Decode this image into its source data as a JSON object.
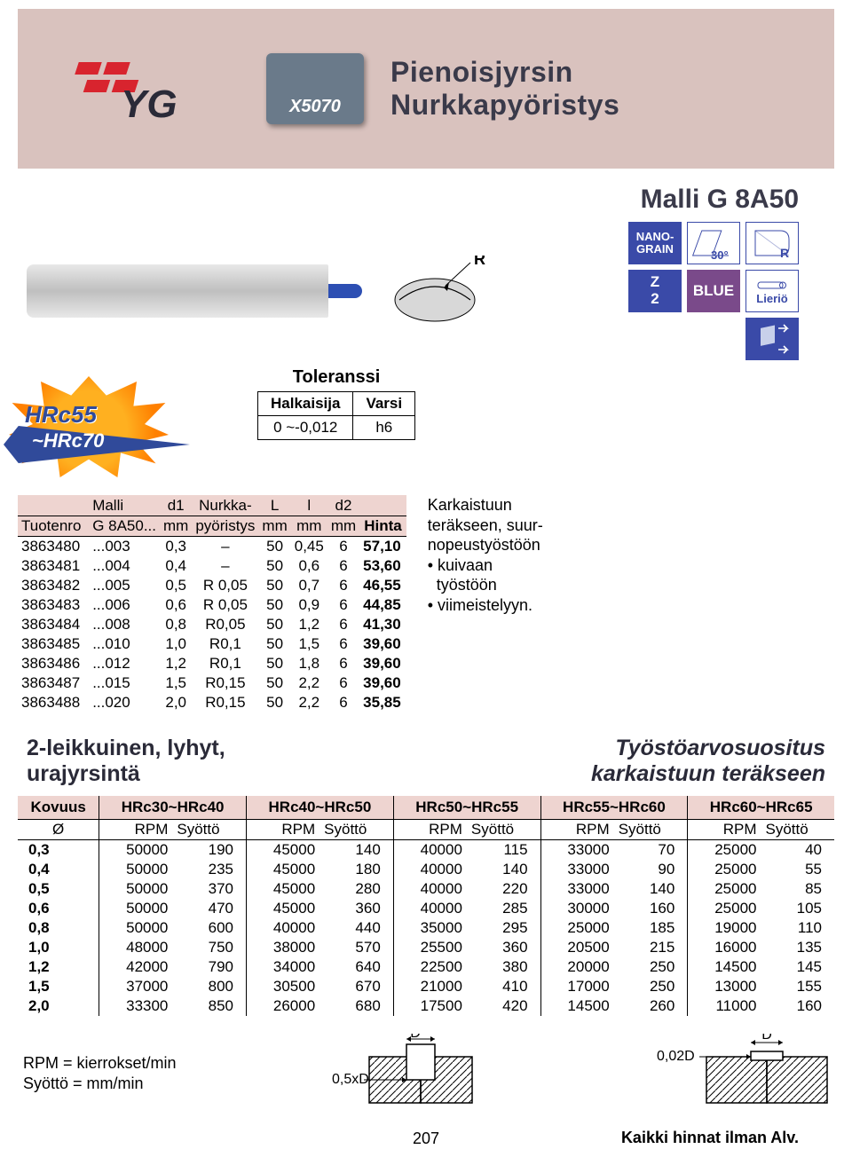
{
  "header": {
    "badge": "X5070",
    "title1": "Pienoisjyrsin",
    "title2": "Nurkkapyöristys"
  },
  "malli_title": "Malli G 8A50",
  "burst": {
    "top": "HRc55",
    "bottom": "~HRc70"
  },
  "tolerance": {
    "title": "Toleranssi",
    "col1": "Halkaisija",
    "col2": "Varsi",
    "v1": "0 ~-0,012",
    "v2": "h6"
  },
  "icons": {
    "nano": "NANO-\nGRAIN",
    "deg": "30°",
    "r": "R",
    "z2": "Z\n2",
    "blue": "BLUE",
    "lierio": "Lieriö"
  },
  "prod_headers": {
    "tuotenro": "Tuotenro",
    "malli": "Malli",
    "malli2": "G 8A50...",
    "d1": "d1",
    "mm": "mm",
    "nurkka": "Nurkka-",
    "pyoristys": "pyöristys",
    "L": "L",
    "l": "l",
    "d2": "d2",
    "hinta": "Hinta"
  },
  "products": [
    {
      "t": "3863480",
      "m": "...003",
      "d1": "0,3",
      "np": "–",
      "L": "50",
      "l": "0,45",
      "d2": "6",
      "h": "57,10"
    },
    {
      "t": "3863481",
      "m": "...004",
      "d1": "0,4",
      "np": "–",
      "L": "50",
      "l": "0,6",
      "d2": "6",
      "h": "53,60"
    },
    {
      "t": "3863482",
      "m": "...005",
      "d1": "0,5",
      "np": "R 0,05",
      "L": "50",
      "l": "0,7",
      "d2": "6",
      "h": "46,55"
    },
    {
      "t": "3863483",
      "m": "...006",
      "d1": "0,6",
      "np": "R 0,05",
      "L": "50",
      "l": "0,9",
      "d2": "6",
      "h": "44,85"
    },
    {
      "t": "3863484",
      "m": "...008",
      "d1": "0,8",
      "np": "R0,05",
      "L": "50",
      "l": "1,2",
      "d2": "6",
      "h": "41,30"
    },
    {
      "t": "3863485",
      "m": "...010",
      "d1": "1,0",
      "np": "R0,1",
      "L": "50",
      "l": "1,5",
      "d2": "6",
      "h": "39,60"
    },
    {
      "t": "3863486",
      "m": "...012",
      "d1": "1,2",
      "np": "R0,1",
      "L": "50",
      "l": "1,8",
      "d2": "6",
      "h": "39,60"
    },
    {
      "t": "3863487",
      "m": "...015",
      "d1": "1,5",
      "np": "R0,15",
      "L": "50",
      "l": "2,2",
      "d2": "6",
      "h": "39,60"
    },
    {
      "t": "3863488",
      "m": "...020",
      "d1": "2,0",
      "np": "R0,15",
      "L": "50",
      "l": "2,2",
      "d2": "6",
      "h": "35,85"
    }
  ],
  "side_text": {
    "l1": "Karkaistuun",
    "l2": "teräkseen, suur-",
    "l3": "nopeustyöstöön",
    "b1": "• kuivaan",
    "b2": "  työstöön",
    "b3": "• viimeistelyyn."
  },
  "section": {
    "left1": "2-leikkuinen, lyhyt,",
    "left2": "urajyrsintä",
    "right1": "Työstöarvosuositus",
    "right2": "karkaistuun teräkseen"
  },
  "cut_heads": {
    "kovuus": "Kovuus",
    "ranges": [
      "HRc30~HRc40",
      "HRc40~HRc50",
      "HRc50~HRc55",
      "HRc55~HRc60",
      "HRc60~HRc65"
    ],
    "dia": "Ø",
    "rpm": "RPM",
    "syotto": "Syöttö"
  },
  "cut_rows": [
    {
      "d": "0,3",
      "v": [
        [
          "50000",
          "190"
        ],
        [
          "45000",
          "140"
        ],
        [
          "40000",
          "115"
        ],
        [
          "33000",
          "70"
        ],
        [
          "25000",
          "40"
        ]
      ]
    },
    {
      "d": "0,4",
      "v": [
        [
          "50000",
          "235"
        ],
        [
          "45000",
          "180"
        ],
        [
          "40000",
          "140"
        ],
        [
          "33000",
          "90"
        ],
        [
          "25000",
          "55"
        ]
      ]
    },
    {
      "d": "0,5",
      "v": [
        [
          "50000",
          "370"
        ],
        [
          "45000",
          "280"
        ],
        [
          "40000",
          "220"
        ],
        [
          "33000",
          "140"
        ],
        [
          "25000",
          "85"
        ]
      ]
    },
    {
      "d": "0,6",
      "v": [
        [
          "50000",
          "470"
        ],
        [
          "45000",
          "360"
        ],
        [
          "40000",
          "285"
        ],
        [
          "30000",
          "160"
        ],
        [
          "25000",
          "105"
        ]
      ]
    },
    {
      "d": "0,8",
      "v": [
        [
          "50000",
          "600"
        ],
        [
          "40000",
          "440"
        ],
        [
          "35000",
          "295"
        ],
        [
          "25000",
          "185"
        ],
        [
          "19000",
          "110"
        ]
      ]
    },
    {
      "d": "1,0",
      "v": [
        [
          "48000",
          "750"
        ],
        [
          "38000",
          "570"
        ],
        [
          "25500",
          "360"
        ],
        [
          "20500",
          "215"
        ],
        [
          "16000",
          "135"
        ]
      ]
    },
    {
      "d": "1,2",
      "v": [
        [
          "42000",
          "790"
        ],
        [
          "34000",
          "640"
        ],
        [
          "22500",
          "380"
        ],
        [
          "20000",
          "250"
        ],
        [
          "14500",
          "145"
        ]
      ]
    },
    {
      "d": "1,5",
      "v": [
        [
          "37000",
          "800"
        ],
        [
          "30500",
          "670"
        ],
        [
          "21000",
          "410"
        ],
        [
          "17000",
          "250"
        ],
        [
          "13000",
          "155"
        ]
      ]
    },
    {
      "d": "2,0",
      "v": [
        [
          "33300",
          "850"
        ],
        [
          "26000",
          "680"
        ],
        [
          "17500",
          "420"
        ],
        [
          "14500",
          "260"
        ],
        [
          "11000",
          "160"
        ]
      ]
    }
  ],
  "legend": {
    "l1": "RPM = kierrokset/min",
    "l2": "Syöttö = mm/min"
  },
  "diag": {
    "d": "D",
    "half": "0,5xD",
    "small": "0,02D"
  },
  "page_number": "207",
  "alv": "Kaikki hinnat ilman Alv."
}
